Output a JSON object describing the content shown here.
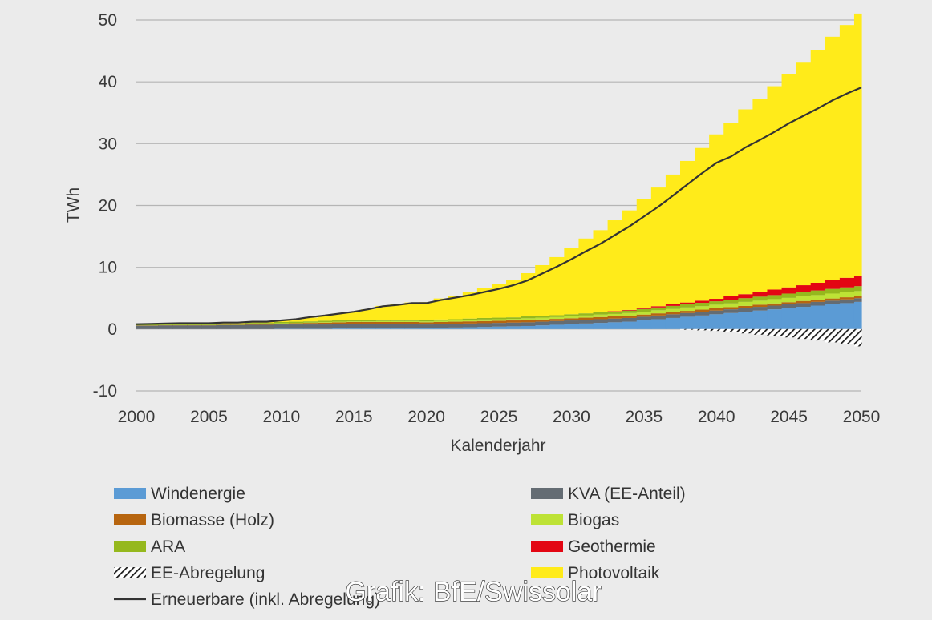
{
  "chart_data": {
    "type": "area",
    "title": "",
    "xlabel": "Kalenderjahr",
    "ylabel": "TWh",
    "xlim": [
      2000,
      2050
    ],
    "ylim": [
      -10,
      50
    ],
    "xticks": [
      "2000",
      "2005",
      "2010",
      "2015",
      "2020",
      "2025",
      "2030",
      "2035",
      "2040",
      "2045",
      "2050"
    ],
    "yticks": [
      "-10",
      "0",
      "10",
      "20",
      "30",
      "40",
      "50"
    ],
    "grid": "horizontal",
    "legend_position": "bottom",
    "x": [
      2000,
      2001,
      2002,
      2003,
      2004,
      2005,
      2006,
      2007,
      2008,
      2009,
      2010,
      2011,
      2012,
      2013,
      2014,
      2015,
      2016,
      2017,
      2018,
      2019,
      2020,
      2021,
      2022,
      2023,
      2024,
      2025,
      2026,
      2027,
      2028,
      2029,
      2030,
      2031,
      2032,
      2033,
      2034,
      2035,
      2036,
      2037,
      2038,
      2039,
      2040,
      2041,
      2042,
      2043,
      2044,
      2045,
      2046,
      2047,
      2048,
      2049,
      2050
    ],
    "series": [
      {
        "name": "Windenergie",
        "color": "#5b9bd5",
        "values": [
          0,
          0,
          0,
          0,
          0,
          0,
          0,
          0,
          0,
          0,
          0.05,
          0.05,
          0.05,
          0.05,
          0.1,
          0.1,
          0.1,
          0.1,
          0.1,
          0.1,
          0.15,
          0.2,
          0.25,
          0.3,
          0.35,
          0.4,
          0.45,
          0.5,
          0.6,
          0.7,
          0.8,
          0.9,
          1.0,
          1.1,
          1.2,
          1.4,
          1.6,
          1.8,
          2.0,
          2.2,
          2.4,
          2.6,
          2.8,
          3.0,
          3.2,
          3.4,
          3.6,
          3.8,
          4.0,
          4.2,
          4.4
        ]
      },
      {
        "name": "KVA (EE-Anteil)",
        "color": "#646c73",
        "values": [
          0.55,
          0.55,
          0.6,
          0.6,
          0.6,
          0.6,
          0.65,
          0.65,
          0.7,
          0.7,
          0.7,
          0.7,
          0.7,
          0.7,
          0.7,
          0.7,
          0.7,
          0.7,
          0.7,
          0.7,
          0.6,
          0.6,
          0.6,
          0.6,
          0.6,
          0.6,
          0.6,
          0.6,
          0.6,
          0.6,
          0.6,
          0.6,
          0.6,
          0.6,
          0.6,
          0.6,
          0.6,
          0.6,
          0.6,
          0.6,
          0.6,
          0.6,
          0.6,
          0.6,
          0.6,
          0.6,
          0.6,
          0.6,
          0.6,
          0.6,
          0.6
        ]
      },
      {
        "name": "Biomasse (Holz)",
        "color": "#b7650f",
        "values": [
          0.05,
          0.05,
          0.05,
          0.05,
          0.05,
          0.05,
          0.05,
          0.05,
          0.1,
          0.1,
          0.15,
          0.2,
          0.25,
          0.3,
          0.3,
          0.35,
          0.35,
          0.35,
          0.35,
          0.35,
          0.35,
          0.35,
          0.35,
          0.35,
          0.35,
          0.35,
          0.35,
          0.35,
          0.35,
          0.35,
          0.35,
          0.35,
          0.35,
          0.35,
          0.35,
          0.35,
          0.35,
          0.35,
          0.35,
          0.35,
          0.35,
          0.35,
          0.35,
          0.35,
          0.35,
          0.35,
          0.35,
          0.35,
          0.35,
          0.35,
          0.35
        ]
      },
      {
        "name": "Biogas",
        "color": "#bde235",
        "values": [
          0,
          0,
          0,
          0,
          0,
          0,
          0,
          0,
          0,
          0,
          0.05,
          0.05,
          0.05,
          0.1,
          0.1,
          0.1,
          0.1,
          0.15,
          0.15,
          0.15,
          0.15,
          0.2,
          0.2,
          0.2,
          0.25,
          0.25,
          0.25,
          0.3,
          0.3,
          0.3,
          0.35,
          0.35,
          0.4,
          0.4,
          0.45,
          0.45,
          0.5,
          0.5,
          0.55,
          0.55,
          0.6,
          0.6,
          0.65,
          0.65,
          0.7,
          0.7,
          0.75,
          0.75,
          0.8,
          0.8,
          0.8
        ]
      },
      {
        "name": "ARA",
        "color": "#95b81d",
        "values": [
          0.2,
          0.2,
          0.2,
          0.2,
          0.2,
          0.2,
          0.2,
          0.2,
          0.2,
          0.2,
          0.2,
          0.2,
          0.2,
          0.2,
          0.2,
          0.2,
          0.2,
          0.2,
          0.2,
          0.2,
          0.2,
          0.2,
          0.2,
          0.25,
          0.25,
          0.25,
          0.25,
          0.3,
          0.3,
          0.3,
          0.3,
          0.35,
          0.35,
          0.4,
          0.4,
          0.45,
          0.45,
          0.5,
          0.5,
          0.55,
          0.55,
          0.6,
          0.6,
          0.65,
          0.65,
          0.7,
          0.7,
          0.75,
          0.75,
          0.8,
          0.8
        ]
      },
      {
        "name": "Geothermie",
        "color": "#e30613",
        "values": [
          0,
          0,
          0,
          0,
          0,
          0,
          0,
          0,
          0,
          0,
          0,
          0,
          0,
          0,
          0,
          0,
          0,
          0,
          0,
          0,
          0,
          0,
          0,
          0,
          0,
          0,
          0,
          0,
          0,
          0,
          0,
          0,
          0,
          0.05,
          0.1,
          0.15,
          0.2,
          0.25,
          0.3,
          0.35,
          0.4,
          0.55,
          0.65,
          0.75,
          0.9,
          1.0,
          1.1,
          1.25,
          1.4,
          1.55,
          1.7
        ]
      },
      {
        "name": "Photovoltaik",
        "color": "#ffeb1a",
        "values": [
          0.05,
          0.05,
          0.1,
          0.1,
          0.1,
          0.1,
          0.15,
          0.15,
          0.2,
          0.2,
          0.3,
          0.4,
          0.6,
          0.85,
          1.1,
          1.35,
          1.75,
          2.25,
          2.5,
          2.8,
          2.9,
          3.4,
          3.8,
          4.3,
          4.8,
          5.4,
          6.1,
          7.0,
          8.2,
          9.4,
          10.7,
          12.1,
          13.3,
          14.7,
          16.1,
          17.6,
          19.2,
          21.0,
          22.9,
          24.7,
          26.6,
          28.0,
          29.9,
          31.3,
          32.9,
          34.5,
          36.0,
          37.6,
          39.4,
          40.9,
          42.4
        ]
      },
      {
        "name": "EE-Abregelung",
        "color": "#222222",
        "values": [
          0,
          0,
          0,
          0,
          0,
          0,
          0,
          0,
          0,
          0,
          0,
          0,
          0,
          0,
          0,
          0,
          0,
          0,
          0,
          0,
          0,
          0,
          0,
          0,
          0,
          0,
          0,
          0,
          0,
          0,
          0,
          0,
          0,
          0,
          0,
          0,
          0,
          0,
          -0.1,
          -0.2,
          -0.3,
          -0.5,
          -0.7,
          -0.9,
          -1.1,
          -1.35,
          -1.6,
          -1.85,
          -2.15,
          -2.45,
          -2.8
        ]
      },
      {
        "name": "Erneuerbare (inkl. Abregelung)",
        "color": "#333333",
        "values": [
          0.8,
          0.85,
          0.9,
          0.95,
          0.95,
          0.95,
          1.05,
          1.05,
          1.2,
          1.2,
          1.4,
          1.6,
          1.95,
          2.2,
          2.5,
          2.8,
          3.2,
          3.7,
          3.9,
          4.2,
          4.2,
          4.7,
          5.1,
          5.5,
          6.0,
          6.5,
          7.1,
          7.9,
          9.0,
          10.1,
          11.3,
          12.6,
          13.8,
          15.2,
          16.6,
          18.2,
          19.8,
          21.6,
          23.4,
          25.2,
          26.9,
          27.9,
          29.4,
          30.6,
          31.9,
          33.3,
          34.5,
          35.7,
          37.0,
          38.1,
          39.1
        ]
      }
    ]
  },
  "credit": "Grafik: BfE/Swissolar"
}
